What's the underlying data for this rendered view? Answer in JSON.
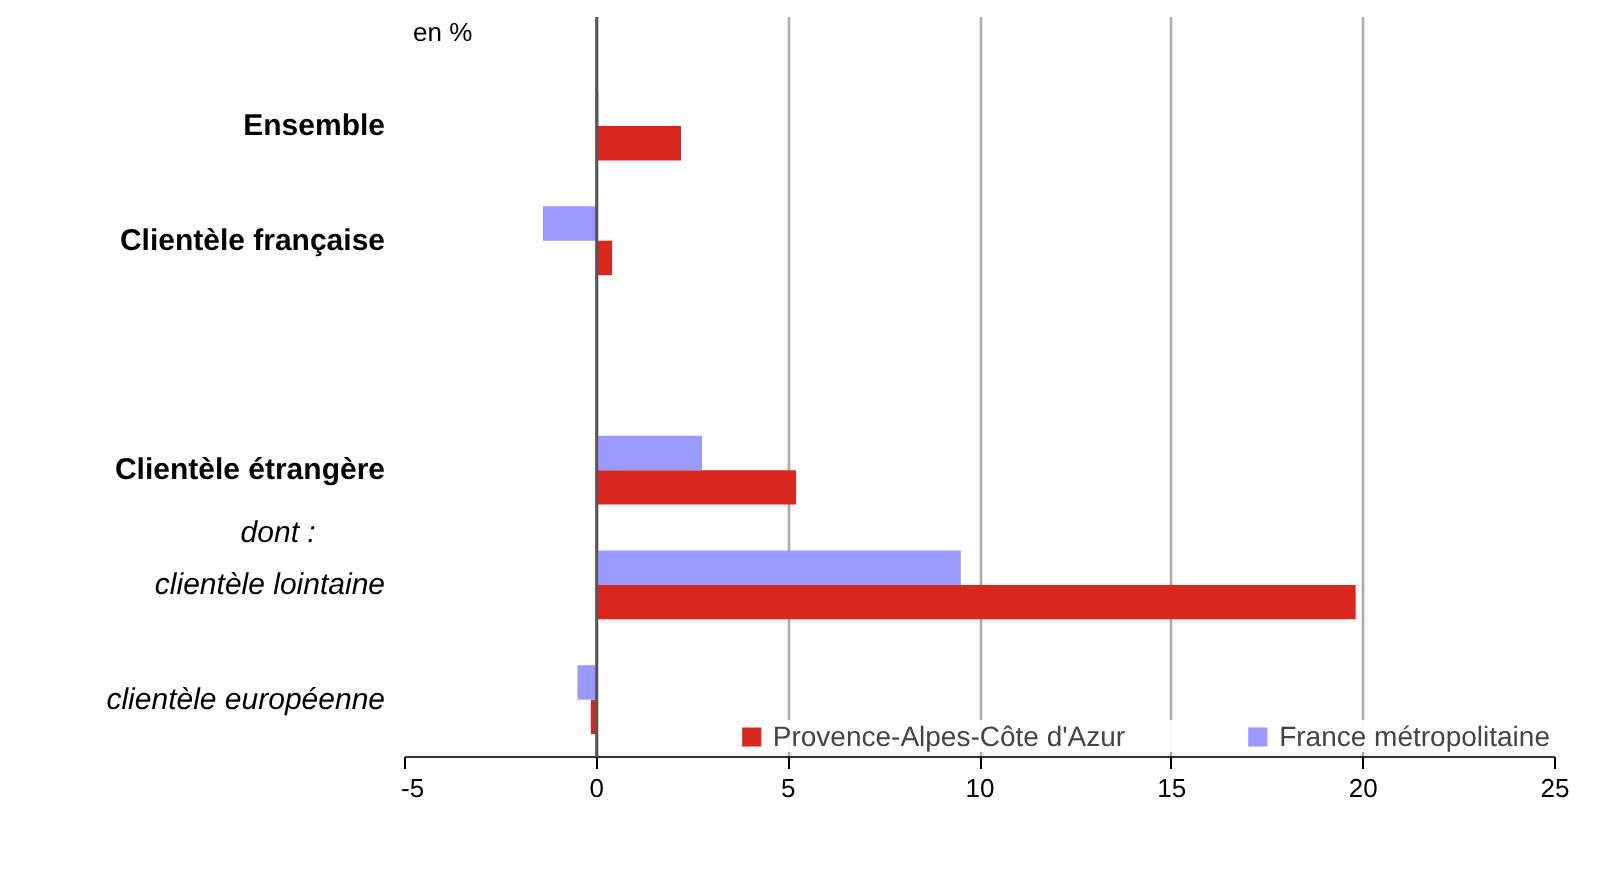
{
  "chart_data": {
    "type": "bar",
    "orientation": "horizontal",
    "xlabel": "en %",
    "categories": [
      "Ensemble",
      "Clientèle française",
      null,
      "Clientèle étrangère",
      "clientèle lointaine",
      "clientèle européenne"
    ],
    "series": [
      {
        "name": "Provence-Alpes-Côte d'Azur",
        "color": "#d9261e",
        "values": [
          2.2,
          0.4,
          null,
          5.2,
          19.8,
          -0.15
        ]
      },
      {
        "name": "France métropolitaine",
        "color": "#9999ff",
        "values": [
          0.05,
          -1.4,
          null,
          2.75,
          9.5,
          -0.5
        ]
      }
    ],
    "annotations": [
      "dont  :"
    ],
    "xlim": [
      -5,
      25
    ],
    "xticks": [
      -5,
      0,
      5,
      10,
      15,
      20,
      25
    ],
    "grid": "x",
    "legend": "bottom right"
  }
}
